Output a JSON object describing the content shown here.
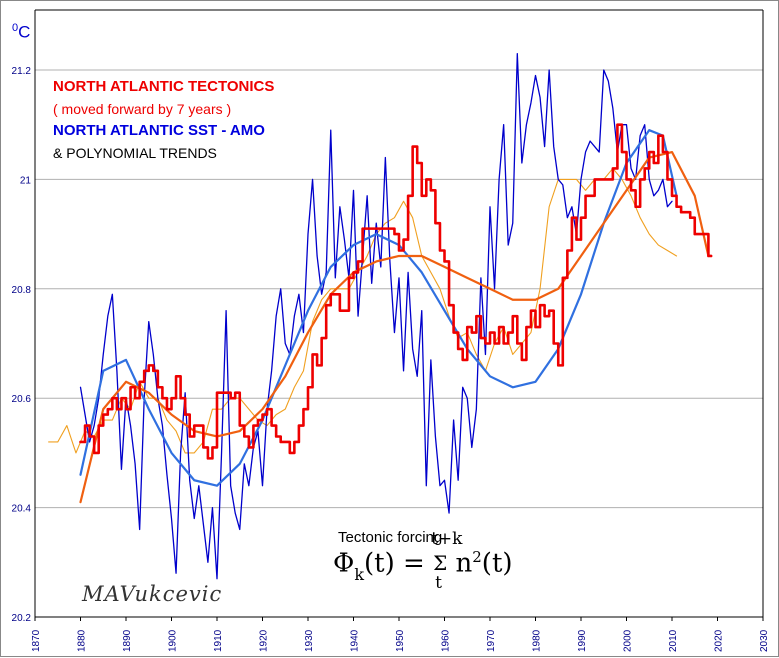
{
  "chart_data": {
    "type": "line",
    "unit_label": "°C",
    "unit_degree": "0",
    "unit_letter": "C",
    "xlim": [
      1870,
      2030
    ],
    "ylim": [
      20.2,
      21.3
    ],
    "x_ticks": [
      1870,
      1880,
      1890,
      1900,
      1910,
      1920,
      1930,
      1940,
      1950,
      1960,
      1970,
      1980,
      1990,
      2000,
      2010,
      2020,
      2030
    ],
    "y_ticks": [
      20.2,
      20.4,
      20.6,
      20.8,
      21,
      21.2
    ],
    "y_tick_labels": [
      "20.2",
      "20.4",
      "20.6",
      "20.8",
      "21",
      "21.2"
    ],
    "grid": "horizontal",
    "legend": {
      "line1": "NORTH ATLANTIC TECTONICS",
      "line2": "( moved forward by 7 years )",
      "line3": "NORTH ATLANTIC SST - AMO",
      "line4": "& POLYNOMIAL TRENDS"
    },
    "annotations": {
      "forcing_title": "Tectonic forcing",
      "formula_phi": "Φ",
      "formula_k": "k",
      "formula_lhs_rest": "(t) = ",
      "formula_sum": "Σ",
      "formula_upper": "t+k",
      "formula_lower": "t",
      "formula_rhs": "n",
      "formula_exp": "2",
      "formula_tail": "(t)",
      "signature": "MAVukcevic"
    },
    "colors": {
      "tectonics": "#ee0000",
      "tectonics_thin": "#f0a020",
      "amo": "#0000cc",
      "amo_trend": "#3070e0",
      "tectonics_trend": "#f06010",
      "grid": "#b0b0b0",
      "axis_labels": "#000088"
    },
    "series": [
      {
        "name": "NORTH ATLANTIC TECTONICS",
        "style": "thick",
        "x": [
          1880,
          1881,
          1882,
          1883,
          1884,
          1885,
          1886,
          1887,
          1888,
          1889,
          1890,
          1891,
          1892,
          1893,
          1894,
          1895,
          1896,
          1897,
          1898,
          1899,
          1900,
          1901,
          1902,
          1903,
          1904,
          1905,
          1906,
          1907,
          1908,
          1909,
          1910,
          1911,
          1912,
          1913,
          1914,
          1915,
          1916,
          1917,
          1918,
          1919,
          1920,
          1921,
          1922,
          1923,
          1924,
          1925,
          1926,
          1927,
          1928,
          1929,
          1930,
          1931,
          1932,
          1933,
          1934,
          1935,
          1936,
          1937,
          1938,
          1939,
          1940,
          1941,
          1942,
          1943,
          1944,
          1945,
          1946,
          1947,
          1948,
          1949,
          1950,
          1951,
          1952,
          1953,
          1954,
          1955,
          1956,
          1957,
          1958,
          1959,
          1960,
          1961,
          1962,
          1963,
          1964,
          1965,
          1966,
          1967,
          1968,
          1969,
          1970,
          1971,
          1972,
          1973,
          1974,
          1975,
          1976,
          1977,
          1978,
          1979,
          1980,
          1981,
          1982,
          1983,
          1984,
          1985,
          1986,
          1987,
          1988,
          1989,
          1990,
          1991,
          1992,
          1993,
          1994,
          1995,
          1996,
          1997,
          1998,
          1999,
          2000,
          2001,
          2002,
          2003,
          2004,
          2005,
          2006,
          2007,
          2008,
          2009,
          2010,
          2011,
          2012,
          2013,
          2014,
          2015,
          2016,
          2017,
          2018
        ],
        "y": [
          20.52,
          20.55,
          20.53,
          20.5,
          20.55,
          20.57,
          20.58,
          20.6,
          20.58,
          20.6,
          20.58,
          20.62,
          20.6,
          20.63,
          20.65,
          20.66,
          20.65,
          20.62,
          20.6,
          20.58,
          20.6,
          20.64,
          20.6,
          20.57,
          20.53,
          20.55,
          20.55,
          20.51,
          20.49,
          20.51,
          20.61,
          20.61,
          20.61,
          20.6,
          20.61,
          20.55,
          20.53,
          20.51,
          20.55,
          20.56,
          20.57,
          20.58,
          20.55,
          20.53,
          20.52,
          20.52,
          20.5,
          20.52,
          20.55,
          20.58,
          20.62,
          20.68,
          20.66,
          20.71,
          20.77,
          20.79,
          20.79,
          20.76,
          20.76,
          20.82,
          20.83,
          20.85,
          20.91,
          20.91,
          20.91,
          20.91,
          20.91,
          20.91,
          20.91,
          20.9,
          20.87,
          20.89,
          20.97,
          21.06,
          21.03,
          20.97,
          21.0,
          20.98,
          20.92,
          20.87,
          20.85,
          20.77,
          20.72,
          20.69,
          20.67,
          20.73,
          20.72,
          20.75,
          20.71,
          20.7,
          20.72,
          20.7,
          20.73,
          20.7,
          20.72,
          20.75,
          20.7,
          20.67,
          20.73,
          20.76,
          20.73,
          20.77,
          20.75,
          20.76,
          20.7,
          20.66,
          20.82,
          20.87,
          20.93,
          20.89,
          20.93,
          20.97,
          20.97,
          21.0,
          21.0,
          21.0,
          21.0,
          21.02,
          21.1,
          21.05,
          21.0,
          20.98,
          20.95,
          21.0,
          21.02,
          21.05,
          21.03,
          21.08,
          21.05,
          21.0,
          20.97,
          20.95,
          20.94,
          20.94,
          20.93,
          20.9,
          20.9,
          20.9,
          20.86
        ]
      },
      {
        "name": "NORTH ATLANTIC TECTONICS (thin)",
        "style": "thin",
        "x": [
          1873,
          1875,
          1877,
          1879,
          1881,
          1883,
          1885,
          1887,
          1889,
          1891,
          1893,
          1895,
          1897,
          1899,
          1901,
          1903,
          1905,
          1907,
          1909,
          1911,
          1913,
          1915,
          1917,
          1919,
          1921,
          1923,
          1925,
          1927,
          1929,
          1931,
          1933,
          1935,
          1937,
          1939,
          1941,
          1943,
          1945,
          1947,
          1949,
          1951,
          1953,
          1955,
          1957,
          1959,
          1961,
          1963,
          1965,
          1967,
          1969,
          1971,
          1973,
          1975,
          1977,
          1979,
          1981,
          1983,
          1985,
          1987,
          1989,
          1991,
          1993,
          1995,
          1997,
          1999,
          2001,
          2003,
          2005,
          2007,
          2009,
          2011
        ],
        "y": [
          20.52,
          20.52,
          20.55,
          20.5,
          20.54,
          20.53,
          20.56,
          20.56,
          20.6,
          20.58,
          20.63,
          20.6,
          20.6,
          20.56,
          20.54,
          20.5,
          20.5,
          20.52,
          20.58,
          20.58,
          20.6,
          20.6,
          20.58,
          20.56,
          20.55,
          20.57,
          20.58,
          20.62,
          20.65,
          20.74,
          20.78,
          20.8,
          20.8,
          20.8,
          20.83,
          20.86,
          20.9,
          20.92,
          20.93,
          20.96,
          20.93,
          20.86,
          20.83,
          20.8,
          20.75,
          20.71,
          20.72,
          20.68,
          20.65,
          20.7,
          20.73,
          20.68,
          20.7,
          20.72,
          20.8,
          20.95,
          21.0,
          21.0,
          21.0,
          20.98,
          21.0,
          21.0,
          21.02,
          21.0,
          20.97,
          20.93,
          20.9,
          20.88,
          20.87,
          20.86
        ]
      },
      {
        "name": "NORTH ATLANTIC SST - AMO",
        "style": "thin",
        "x": [
          1880,
          1881,
          1882,
          1883,
          1884,
          1885,
          1886,
          1887,
          1888,
          1889,
          1890,
          1891,
          1892,
          1893,
          1894,
          1895,
          1896,
          1897,
          1898,
          1899,
          1900,
          1901,
          1902,
          1903,
          1904,
          1905,
          1906,
          1907,
          1908,
          1909,
          1910,
          1911,
          1912,
          1913,
          1914,
          1915,
          1916,
          1917,
          1918,
          1919,
          1920,
          1921,
          1922,
          1923,
          1924,
          1925,
          1926,
          1927,
          1928,
          1929,
          1930,
          1931,
          1932,
          1933,
          1934,
          1935,
          1936,
          1937,
          1938,
          1939,
          1940,
          1941,
          1942,
          1943,
          1944,
          1945,
          1946,
          1947,
          1948,
          1949,
          1950,
          1951,
          1952,
          1953,
          1954,
          1955,
          1956,
          1957,
          1958,
          1959,
          1960,
          1961,
          1962,
          1963,
          1964,
          1965,
          1966,
          1967,
          1968,
          1969,
          1970,
          1971,
          1972,
          1973,
          1974,
          1975,
          1976,
          1977,
          1978,
          1979,
          1980,
          1981,
          1982,
          1983,
          1984,
          1985,
          1986,
          1987,
          1988,
          1989,
          1990,
          1991,
          1992,
          1993,
          1994,
          1995,
          1996,
          1997,
          1998,
          1999,
          2000,
          2001,
          2002,
          2003,
          2004,
          2005,
          2006,
          2007,
          2008,
          2009,
          2010
        ],
        "y": [
          20.62,
          20.57,
          20.52,
          20.55,
          20.6,
          20.68,
          20.75,
          20.79,
          20.65,
          20.47,
          20.6,
          20.55,
          20.48,
          20.36,
          20.6,
          20.74,
          20.68,
          20.6,
          20.55,
          20.46,
          20.38,
          20.28,
          20.5,
          20.61,
          20.45,
          20.38,
          20.44,
          20.37,
          20.3,
          20.4,
          20.27,
          20.5,
          20.76,
          20.44,
          20.39,
          20.36,
          20.48,
          20.44,
          20.51,
          20.54,
          20.44,
          20.58,
          20.65,
          20.75,
          20.8,
          20.7,
          20.68,
          20.75,
          20.79,
          20.72,
          20.9,
          21.0,
          20.86,
          20.79,
          20.83,
          21.09,
          20.82,
          20.95,
          20.89,
          20.82,
          20.98,
          20.75,
          20.86,
          20.97,
          20.81,
          20.92,
          20.84,
          21.04,
          20.85,
          20.72,
          20.82,
          20.65,
          20.83,
          20.69,
          20.64,
          20.76,
          20.44,
          20.67,
          20.53,
          20.44,
          20.45,
          20.39,
          20.56,
          20.45,
          20.62,
          20.6,
          20.51,
          20.58,
          20.82,
          20.68,
          20.95,
          20.8,
          21.0,
          21.1,
          20.88,
          20.92,
          21.23,
          21.03,
          21.1,
          21.14,
          21.19,
          21.15,
          21.06,
          21.2,
          21.06,
          21.0,
          20.99,
          20.93,
          20.95,
          20.9,
          21.0,
          21.05,
          21.07,
          21.06,
          21.05,
          21.2,
          21.18,
          21.13,
          21.05,
          21.1,
          21.1,
          21.02,
          21.0,
          21.08,
          21.1,
          21.0,
          20.97,
          20.98,
          21.0,
          20.95,
          20.96
        ]
      },
      {
        "name": "AMO trend",
        "style": "trend",
        "x": [
          1880,
          1885,
          1890,
          1895,
          1900,
          1905,
          1910,
          1915,
          1920,
          1925,
          1930,
          1935,
          1940,
          1945,
          1950,
          1955,
          1960,
          1965,
          1970,
          1975,
          1980,
          1985,
          1990,
          1995,
          2000,
          2005,
          2008,
          2011
        ],
        "y": [
          20.46,
          20.65,
          20.67,
          20.58,
          20.5,
          20.45,
          20.44,
          20.48,
          20.56,
          20.66,
          20.76,
          20.84,
          20.88,
          20.9,
          20.88,
          20.83,
          20.76,
          20.69,
          20.64,
          20.62,
          20.63,
          20.69,
          20.79,
          20.92,
          21.03,
          21.09,
          21.08,
          20.97
        ]
      },
      {
        "name": "Tectonics trend",
        "style": "trend",
        "x": [
          1880,
          1885,
          1890,
          1895,
          1900,
          1905,
          1910,
          1915,
          1920,
          1925,
          1930,
          1935,
          1940,
          1945,
          1950,
          1955,
          1960,
          1965,
          1970,
          1975,
          1980,
          1985,
          1990,
          1995,
          2000,
          2005,
          2010,
          2015,
          2018
        ],
        "y": [
          20.41,
          20.58,
          20.63,
          20.61,
          20.57,
          20.54,
          20.53,
          20.54,
          20.58,
          20.64,
          20.72,
          20.79,
          20.83,
          20.85,
          20.86,
          20.86,
          20.84,
          20.82,
          20.8,
          20.78,
          20.78,
          20.8,
          20.86,
          20.92,
          20.98,
          21.04,
          21.05,
          20.97,
          20.86
        ]
      }
    ]
  }
}
